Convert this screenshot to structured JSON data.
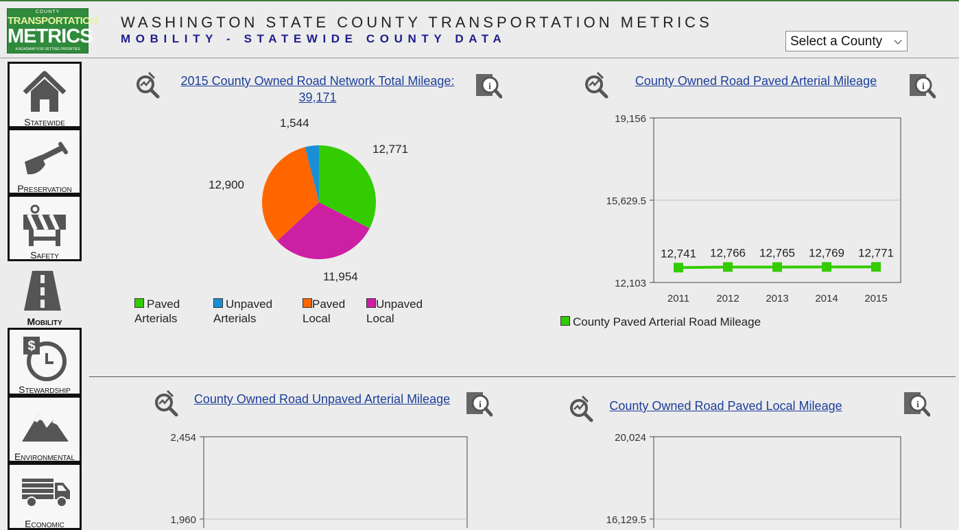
{
  "header": {
    "title": "WASHINGTON STATE COUNTY TRANSPORTATION METRICS",
    "subtitle": "MOBILITY - STATEWIDE COUNTY DATA",
    "logo": {
      "line1": "COUNTY",
      "line2": "TRANSPORTATION",
      "line3": "METRICS",
      "line4": "A ROADMAP FOR SETTING PRIORITIES"
    },
    "county_select": {
      "value": "Select a County"
    }
  },
  "nav": {
    "items": [
      {
        "label": "Statewide",
        "icon": "house-icon"
      },
      {
        "label": "Preservation",
        "icon": "shovel-icon"
      },
      {
        "label": "Safety",
        "icon": "barricade-icon"
      },
      {
        "label": "Mobility",
        "icon": "road-icon",
        "active": true
      },
      {
        "label": "Stewardship",
        "icon": "clock-money-icon"
      },
      {
        "label": "Environmental",
        "icon": "mountain-icon"
      },
      {
        "label": "Economic",
        "icon": "truck-icon"
      }
    ]
  },
  "panels": {
    "pie": {
      "title_line1": "2015 County Owned Road Network Total Mileage:",
      "title_line2": "39,171"
    },
    "paved_arterial": {
      "title": "County Owned Road Paved Arterial Mileage"
    },
    "unpaved_arterial": {
      "title": "County Owned Road Unpaved Arterial Mileage"
    },
    "paved_local": {
      "title": "County Owned Road Paved Local Mileage"
    }
  },
  "chart_data": [
    {
      "type": "pie",
      "categories": [
        "Paved Arterials",
        "Unpaved Arterials",
        "Paved Local",
        "Unpaved Local"
      ],
      "values": [
        12771,
        1544,
        12900,
        11954
      ],
      "value_labels": [
        "12,771",
        "1,544",
        "12,900",
        "11,954"
      ],
      "colors": [
        "#33cc00",
        "#1a8fd6",
        "#ff6600",
        "#cc1fa3"
      ],
      "legend": [
        {
          "line1": "Paved",
          "line2": "Arterials"
        },
        {
          "line1": "Unpaved",
          "line2": "Arterials"
        },
        {
          "line1": "Paved",
          "line2": "Local"
        },
        {
          "line1": "Unpaved",
          "line2": "Local"
        }
      ],
      "legend_placement": "bottom"
    },
    {
      "type": "line",
      "x": [
        "2011",
        "2012",
        "2013",
        "2014",
        "2015"
      ],
      "series": [
        {
          "name": "County Paved Arterial Road Mileage",
          "values": [
            12741,
            12766,
            12765,
            12769,
            12771
          ],
          "color": "#33cc00"
        }
      ],
      "value_labels": [
        "12,741",
        "12,766",
        "12,765",
        "12,769",
        "12,771"
      ],
      "ylim": [
        12103,
        19156
      ],
      "yticks": [
        "12,103",
        "15,629.5",
        "19,156"
      ],
      "grid": true,
      "legend_placement": "bottom-left"
    },
    {
      "type": "line",
      "ylim_visible": [
        1960,
        2454
      ],
      "yticks": [
        "1,960",
        "2,454"
      ]
    },
    {
      "type": "line",
      "ylim_visible": [
        16129.5,
        20024
      ],
      "yticks": [
        "16,129.5",
        "20,024"
      ]
    }
  ]
}
